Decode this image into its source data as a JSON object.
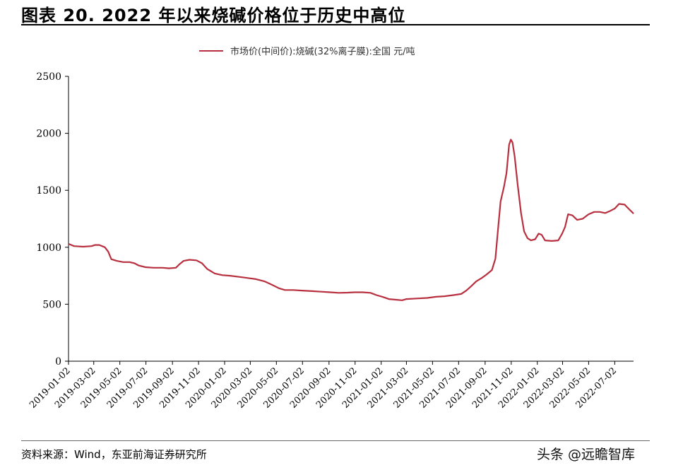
{
  "figure": {
    "title": "图表 20. 2022 年以来烧碱价格位于历史中高位",
    "source": "资料来源：Wind，东亚前海证券研究所",
    "watermark": "头条 @远瞻智库"
  },
  "chart_data": {
    "type": "line",
    "title": "",
    "xlabel": "",
    "ylabel": "",
    "ylim": [
      0,
      2500
    ],
    "yticks": [
      "0",
      "500",
      "1000",
      "1500",
      "2000",
      "2500"
    ],
    "xlim": [
      "2019-01-02",
      "2022-08-15"
    ],
    "xticks": [
      "2019-01-02",
      "2019-03-02",
      "2019-05-02",
      "2019-07-02",
      "2019-09-02",
      "2019-11-02",
      "2020-01-02",
      "2020-03-02",
      "2020-05-02",
      "2020-07-02",
      "2020-09-02",
      "2020-11-02",
      "2021-01-02",
      "2021-03-02",
      "2021-05-02",
      "2021-07-02",
      "2021-09-02",
      "2021-11-02",
      "2022-01-02",
      "2022-03-02",
      "2022-05-02",
      "2022-07-02"
    ],
    "grid": false,
    "legend_position": "top",
    "series_color": "#b83040",
    "series": [
      {
        "name": "市场价(中间价):烧碱(32%离子膜):全国 元/吨",
        "points": [
          [
            "2019-01-02",
            1030
          ],
          [
            "2019-01-15",
            1010
          ],
          [
            "2019-02-05",
            1005
          ],
          [
            "2019-02-25",
            1010
          ],
          [
            "2019-03-05",
            1020
          ],
          [
            "2019-03-15",
            1020
          ],
          [
            "2019-03-28",
            1000
          ],
          [
            "2019-04-05",
            960
          ],
          [
            "2019-04-12",
            895
          ],
          [
            "2019-04-25",
            880
          ],
          [
            "2019-05-10",
            870
          ],
          [
            "2019-05-25",
            870
          ],
          [
            "2019-06-05",
            860
          ],
          [
            "2019-06-15",
            840
          ],
          [
            "2019-07-01",
            825
          ],
          [
            "2019-07-20",
            820
          ],
          [
            "2019-08-10",
            820
          ],
          [
            "2019-08-25",
            815
          ],
          [
            "2019-09-10",
            820
          ],
          [
            "2019-09-18",
            850
          ],
          [
            "2019-09-28",
            880
          ],
          [
            "2019-10-12",
            890
          ],
          [
            "2019-10-28",
            885
          ],
          [
            "2019-11-10",
            860
          ],
          [
            "2019-11-22",
            810
          ],
          [
            "2019-12-10",
            770
          ],
          [
            "2019-12-28",
            755
          ],
          [
            "2020-01-15",
            750
          ],
          [
            "2020-02-05",
            740
          ],
          [
            "2020-02-25",
            730
          ],
          [
            "2020-03-15",
            720
          ],
          [
            "2020-04-05",
            700
          ],
          [
            "2020-04-22",
            670
          ],
          [
            "2020-05-08",
            640
          ],
          [
            "2020-05-22",
            625
          ],
          [
            "2020-06-10",
            625
          ],
          [
            "2020-07-01",
            620
          ],
          [
            "2020-07-25",
            615
          ],
          [
            "2020-08-15",
            610
          ],
          [
            "2020-09-05",
            605
          ],
          [
            "2020-09-25",
            600
          ],
          [
            "2020-10-15",
            602
          ],
          [
            "2020-11-01",
            605
          ],
          [
            "2020-11-20",
            605
          ],
          [
            "2020-12-08",
            600
          ],
          [
            "2020-12-22",
            580
          ],
          [
            "2021-01-05",
            565
          ],
          [
            "2021-01-20",
            545
          ],
          [
            "2021-02-05",
            540
          ],
          [
            "2021-02-20",
            535
          ],
          [
            "2021-03-02",
            545
          ],
          [
            "2021-03-25",
            550
          ],
          [
            "2021-04-20",
            555
          ],
          [
            "2021-05-10",
            565
          ],
          [
            "2021-05-30",
            570
          ],
          [
            "2021-06-20",
            580
          ],
          [
            "2021-07-08",
            590
          ],
          [
            "2021-07-20",
            620
          ],
          [
            "2021-08-01",
            660
          ],
          [
            "2021-08-12",
            700
          ],
          [
            "2021-08-25",
            730
          ],
          [
            "2021-09-05",
            760
          ],
          [
            "2021-09-18",
            800
          ],
          [
            "2021-09-26",
            900
          ],
          [
            "2021-10-02",
            1150
          ],
          [
            "2021-10-08",
            1400
          ],
          [
            "2021-10-16",
            1530
          ],
          [
            "2021-10-22",
            1650
          ],
          [
            "2021-10-28",
            1900
          ],
          [
            "2021-11-01",
            1945
          ],
          [
            "2021-11-05",
            1920
          ],
          [
            "2021-11-10",
            1800
          ],
          [
            "2021-11-17",
            1550
          ],
          [
            "2021-11-25",
            1300
          ],
          [
            "2021-12-02",
            1140
          ],
          [
            "2021-12-10",
            1080
          ],
          [
            "2021-12-18",
            1060
          ],
          [
            "2021-12-28",
            1070
          ],
          [
            "2022-01-05",
            1120
          ],
          [
            "2022-01-12",
            1110
          ],
          [
            "2022-01-20",
            1060
          ],
          [
            "2022-02-05",
            1055
          ],
          [
            "2022-02-20",
            1060
          ],
          [
            "2022-03-01",
            1120
          ],
          [
            "2022-03-08",
            1180
          ],
          [
            "2022-03-15",
            1290
          ],
          [
            "2022-03-25",
            1280
          ],
          [
            "2022-04-05",
            1240
          ],
          [
            "2022-04-18",
            1250
          ],
          [
            "2022-05-02",
            1290
          ],
          [
            "2022-05-15",
            1310
          ],
          [
            "2022-05-28",
            1310
          ],
          [
            "2022-06-10",
            1300
          ],
          [
            "2022-06-22",
            1320
          ],
          [
            "2022-07-02",
            1340
          ],
          [
            "2022-07-12",
            1380
          ],
          [
            "2022-07-25",
            1375
          ],
          [
            "2022-08-03",
            1340
          ],
          [
            "2022-08-15",
            1295
          ]
        ]
      }
    ]
  }
}
